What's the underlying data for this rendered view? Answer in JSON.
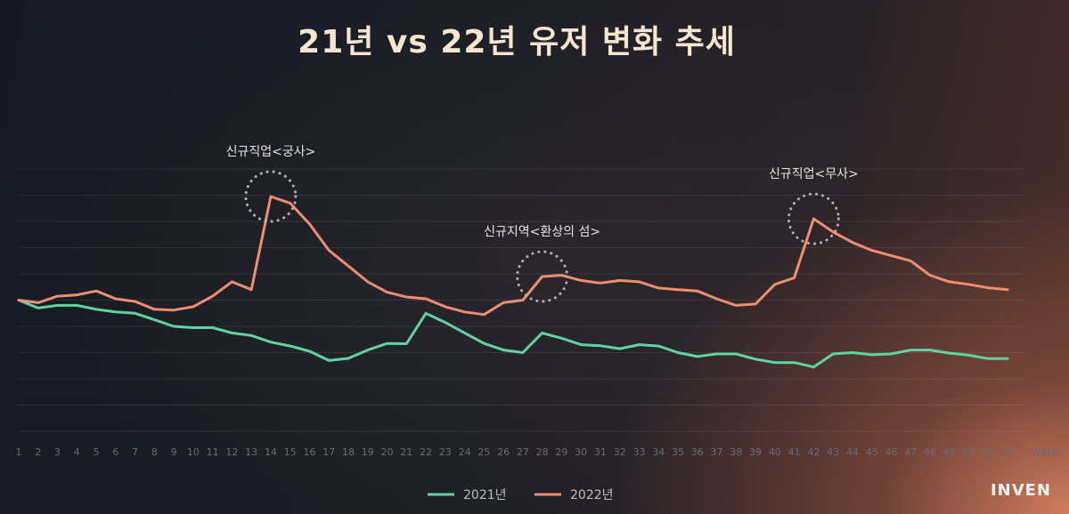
{
  "chart_data": {
    "type": "line",
    "title": "21년 vs 22년 유저 변화 추세",
    "x_unit_label": "Week",
    "x": [
      1,
      2,
      3,
      4,
      5,
      6,
      7,
      8,
      9,
      10,
      11,
      12,
      13,
      14,
      15,
      16,
      17,
      18,
      19,
      20,
      21,
      22,
      23,
      24,
      25,
      26,
      27,
      28,
      29,
      30,
      31,
      32,
      33,
      34,
      35,
      36,
      37,
      38,
      39,
      40,
      41,
      42,
      43,
      44,
      45,
      46,
      47,
      48,
      49,
      50,
      51,
      52
    ],
    "ylim": [
      0,
      100
    ],
    "grid": true,
    "legend": "bottom-center",
    "series": [
      {
        "name": "2021년",
        "color": "#5fd3a0",
        "values": [
          50,
          47,
          48,
          48,
          46.5,
          45.5,
          45,
          42.5,
          40,
          39.5,
          39.5,
          37.5,
          36.5,
          34,
          32.5,
          30.5,
          27,
          27.8,
          31,
          33.5,
          33.4,
          45,
          41.5,
          37.5,
          33.5,
          31,
          30,
          37.5,
          35.5,
          33,
          32.6,
          31.5,
          33,
          32.5,
          30,
          28.5,
          29.5,
          29.5,
          27.5,
          26.2,
          26.2,
          24.5,
          29.5,
          30,
          29.2,
          29.5,
          31,
          31,
          29.8,
          29,
          27.7,
          27.7
        ]
      },
      {
        "name": "2022년",
        "color": "#ee8d70",
        "values": [
          50,
          49,
          51.5,
          52,
          53.5,
          50.5,
          49.5,
          46.5,
          46.2,
          47.5,
          51.5,
          57,
          54,
          89.5,
          87,
          79,
          69,
          63,
          57,
          53,
          51.2,
          50.5,
          47.5,
          45.5,
          44.5,
          49,
          50,
          59,
          59.5,
          57.5,
          56.5,
          57.5,
          57,
          54.6,
          54,
          53.5,
          50.5,
          48,
          48.5,
          56,
          58.5,
          81,
          76,
          72,
          69,
          67,
          65,
          59.5,
          57,
          56,
          54.7,
          54
        ]
      }
    ],
    "annotations": [
      {
        "text": "신규직업<궁사>",
        "x": 14,
        "y": 89.5
      },
      {
        "text": "신규지역<환상의 섬>",
        "x": 28,
        "y": 59
      },
      {
        "text": "신규직업<무사>",
        "x": 42,
        "y": 81
      }
    ]
  },
  "brand": "INVEN"
}
